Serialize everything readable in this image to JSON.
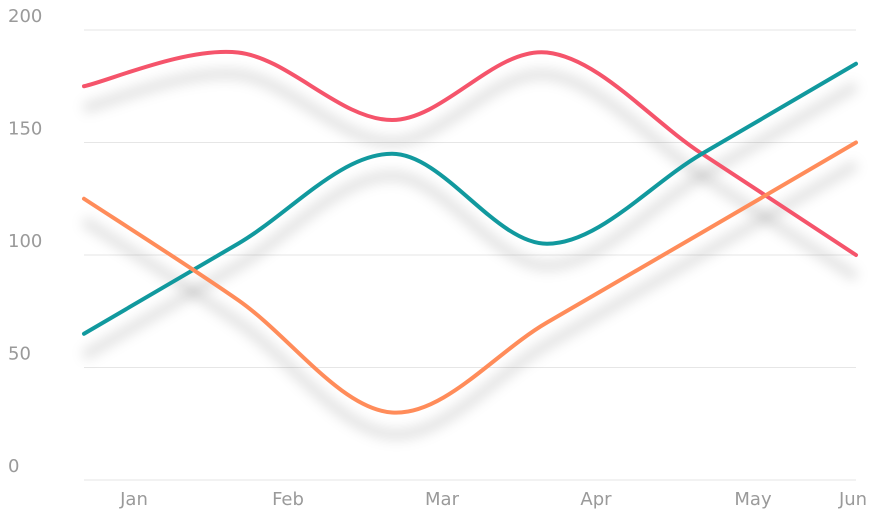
{
  "chart_data": {
    "type": "line",
    "categories": [
      "Jan",
      "Feb",
      "Mar",
      "Apr",
      "May",
      "Jun"
    ],
    "ylim": [
      0,
      200
    ],
    "yticks": [
      0,
      50,
      100,
      150,
      200
    ],
    "grid": true,
    "series": [
      {
        "color": "#f5546b",
        "points": [
          [
            0,
            175
          ],
          [
            1,
            190
          ],
          [
            2,
            160
          ],
          [
            3,
            190
          ],
          [
            4,
            145
          ],
          [
            5,
            100
          ]
        ]
      },
      {
        "color": "#11999e",
        "points": [
          [
            0,
            65
          ],
          [
            1,
            105
          ],
          [
            2,
            145
          ],
          [
            3,
            105
          ],
          [
            4,
            145
          ],
          [
            5,
            185
          ]
        ]
      },
      {
        "color": "#ff8c5a",
        "points": [
          [
            0,
            125
          ],
          [
            1,
            80
          ],
          [
            2,
            30
          ],
          [
            3,
            70
          ],
          [
            4,
            110
          ],
          [
            5,
            150
          ]
        ]
      }
    ]
  }
}
